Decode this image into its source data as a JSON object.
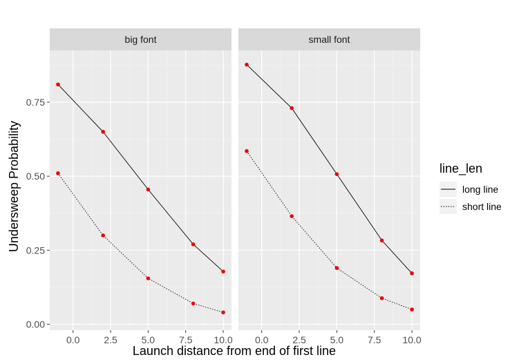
{
  "chart_data": {
    "type": "line",
    "title": "",
    "xlabel": "Launch distance from end of first line",
    "ylabel": "Undersweep Probability",
    "xlim": [
      -1.55,
      10.55
    ],
    "ylim": [
      -0.02,
      0.925
    ],
    "x_ticks": [
      0,
      2.5,
      5,
      7.5,
      10
    ],
    "x_tick_labels": [
      "0.0",
      "2.5",
      "5.0",
      "7.5",
      "10.0"
    ],
    "y_ticks": [
      0,
      0.25,
      0.5,
      0.75
    ],
    "y_tick_labels": [
      "0.00",
      "0.25",
      "0.50",
      "0.75"
    ],
    "grid": true,
    "legend": {
      "title": "line_len",
      "placement": "right",
      "entries": [
        {
          "label": "long line",
          "linetype": "solid"
        },
        {
          "label": "short line",
          "linetype": "dotted"
        }
      ]
    },
    "point_color": "#ee0000",
    "line_color": "#000000",
    "panel_bg": "#ebebeb",
    "strip_bg": "#d9d9d9",
    "facets": [
      {
        "label": "big font",
        "series": [
          {
            "name": "long line",
            "linetype": "solid",
            "x": [
              -1,
              2,
              5,
              8,
              10
            ],
            "y": [
              0.81,
              0.65,
              0.455,
              0.27,
              0.178
            ]
          },
          {
            "name": "short line",
            "linetype": "dotted",
            "x": [
              -1,
              2,
              5,
              8,
              10
            ],
            "y": [
              0.51,
              0.3,
              0.155,
              0.07,
              0.04
            ]
          }
        ]
      },
      {
        "label": "small font",
        "series": [
          {
            "name": "long line",
            "linetype": "solid",
            "x": [
              -1,
              2,
              5,
              8,
              10
            ],
            "y": [
              0.877,
              0.73,
              0.507,
              0.283,
              0.172
            ]
          },
          {
            "name": "short line",
            "linetype": "dotted",
            "x": [
              -1,
              2,
              5,
              8,
              10
            ],
            "y": [
              0.585,
              0.365,
              0.19,
              0.088,
              0.05
            ]
          }
        ]
      }
    ]
  }
}
